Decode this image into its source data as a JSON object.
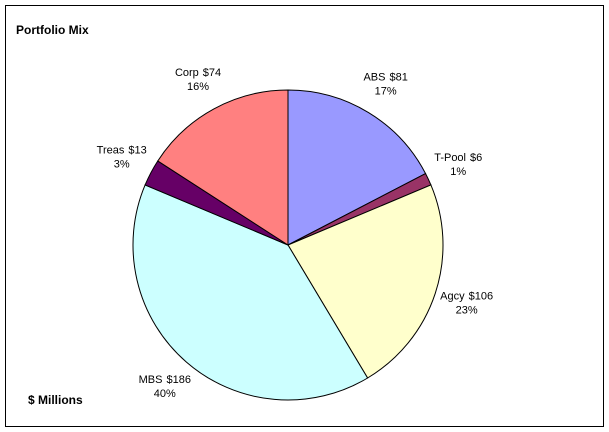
{
  "chart_data": {
    "type": "pie",
    "title": "Portfolio Mix",
    "unit_label": "$ Millions",
    "categories": [
      "ABS",
      "T-Pool",
      "Agcy",
      "MBS",
      "Treas",
      "Corp"
    ],
    "values": [
      81,
      6,
      106,
      186,
      13,
      74
    ],
    "value_labels": [
      "$81",
      "$6",
      "$106",
      "$186",
      "$13",
      "$74"
    ],
    "percent_labels": [
      "17%",
      "1%",
      "23%",
      "40%",
      "3%",
      "16%"
    ],
    "colors": [
      "#9999ff",
      "#993366",
      "#ffffcc",
      "#ccffff",
      "#660066",
      "#ff8080"
    ]
  }
}
